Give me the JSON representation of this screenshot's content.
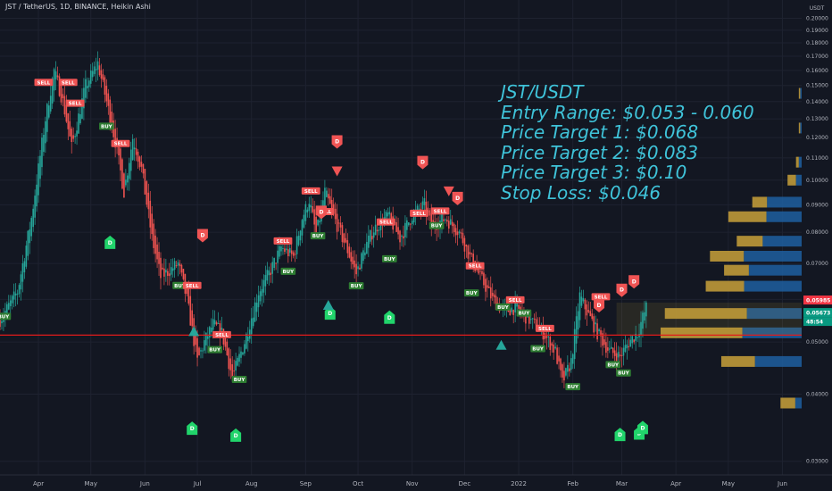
{
  "header": {
    "title": "JST / TetherUS, 1D, BINANCE, Heikin Ashi",
    "currency": "USDT"
  },
  "note": {
    "lines": [
      "JST/USDT",
      "Entry Range: $0.053 - 0.060",
      "Price Target 1: $0.068",
      "Price Target 2: $0.083",
      "Price Target 3: $0.10",
      "Stop Loss: $0.046"
    ]
  },
  "price_tags": [
    {
      "text": "0.05985",
      "value": 0.05985,
      "color": "#f23645"
    },
    {
      "text": "0.05673",
      "value": 0.05673,
      "color": "#089981"
    },
    {
      "text": "48:54",
      "value": 0.0551,
      "color": "#089981"
    }
  ],
  "colors": {
    "background": "#131722",
    "up": "#26a69a",
    "down": "#ef5350",
    "note_text": "#3fc3d9",
    "support_line": "#e21b1b",
    "profile_blue": "#1f5fa0",
    "profile_gold": "#c9a13a"
  },
  "chart_data": {
    "type": "candlestick",
    "title": "JST / TetherUS, 1D, BINANCE, Heikin Ashi",
    "y_scale": "log",
    "ylim": [
      0.0283,
      0.205
    ],
    "y_ticks": [
      0.03,
      0.04,
      0.05,
      0.06,
      0.07,
      0.08,
      0.09,
      0.1,
      0.11,
      0.12,
      0.13,
      0.14,
      0.15,
      0.16,
      0.17,
      0.18,
      0.19,
      0.2
    ],
    "y_tick_labels": [
      "0.03000",
      "0.04000",
      "0.05000",
      "0.06000",
      "0.07000",
      "0.08000",
      "0.09000",
      "0.10000",
      "0.11000",
      "0.12000",
      "0.13000",
      "0.14000",
      "0.15000",
      "0.16000",
      "0.17000",
      "0.18000",
      "0.19000",
      "0.20000"
    ],
    "x_labels": [
      "Apr",
      "May",
      "Jun",
      "Jul",
      "Aug",
      "Sep",
      "Oct",
      "Nov",
      "Dec",
      "2022",
      "Feb",
      "Mar",
      "Apr",
      "May",
      "Jun"
    ],
    "x_dates": [
      "2021-04-01",
      "2021-05-01",
      "2021-06-01",
      "2021-07-01",
      "2021-08-01",
      "2021-09-01",
      "2021-10-01",
      "2021-11-01",
      "2021-12-01",
      "2022-01-01",
      "2022-02-01",
      "2022-03-01",
      "2022-04-01",
      "2022-05-01",
      "2022-06-01"
    ],
    "x_range": [
      "2021-03-10",
      "2022-06-12"
    ],
    "support_line": 0.0515,
    "price_path": [
      [
        "2021-03-10",
        0.055
      ],
      [
        "2021-03-20",
        0.062
      ],
      [
        "2021-03-28",
        0.085
      ],
      [
        "2021-04-05",
        0.13
      ],
      [
        "2021-04-10",
        0.16
      ],
      [
        "2021-04-15",
        0.14
      ],
      [
        "2021-04-20",
        0.115
      ],
      [
        "2021-04-28",
        0.15
      ],
      [
        "2021-05-05",
        0.165
      ],
      [
        "2021-05-10",
        0.14
      ],
      [
        "2021-05-15",
        0.118
      ],
      [
        "2021-05-20",
        0.095
      ],
      [
        "2021-05-25",
        0.12
      ],
      [
        "2021-05-30",
        0.105
      ],
      [
        "2021-06-05",
        0.078
      ],
      [
        "2021-06-10",
        0.066
      ],
      [
        "2021-06-20",
        0.07
      ],
      [
        "2021-06-25",
        0.06
      ],
      [
        "2021-07-01",
        0.046
      ],
      [
        "2021-07-05",
        0.05
      ],
      [
        "2021-07-10",
        0.054
      ],
      [
        "2021-07-15",
        0.052
      ],
      [
        "2021-07-21",
        0.043
      ],
      [
        "2021-07-28",
        0.05
      ],
      [
        "2021-08-05",
        0.062
      ],
      [
        "2021-08-12",
        0.068
      ],
      [
        "2021-08-18",
        0.075
      ],
      [
        "2021-08-25",
        0.072
      ],
      [
        "2021-08-30",
        0.085
      ],
      [
        "2021-09-03",
        0.092
      ],
      [
        "2021-09-07",
        0.079
      ],
      [
        "2021-09-12",
        0.095
      ],
      [
        "2021-09-18",
        0.084
      ],
      [
        "2021-09-25",
        0.074
      ],
      [
        "2021-09-30",
        0.067
      ],
      [
        "2021-10-05",
        0.075
      ],
      [
        "2021-10-10",
        0.081
      ],
      [
        "2021-10-18",
        0.086
      ],
      [
        "2021-10-25",
        0.078
      ],
      [
        "2021-11-01",
        0.086
      ],
      [
        "2021-11-08",
        0.09
      ],
      [
        "2021-11-12",
        0.082
      ],
      [
        "2021-11-20",
        0.085
      ],
      [
        "2021-11-28",
        0.08
      ],
      [
        "2021-12-04",
        0.072
      ],
      [
        "2021-12-10",
        0.066
      ],
      [
        "2021-12-17",
        0.06
      ],
      [
        "2021-12-24",
        0.057
      ],
      [
        "2021-12-30",
        0.058
      ],
      [
        "2022-01-07",
        0.055
      ],
      [
        "2022-01-15",
        0.052
      ],
      [
        "2022-01-22",
        0.048
      ],
      [
        "2022-01-26",
        0.042
      ],
      [
        "2022-01-31",
        0.046
      ],
      [
        "2022-02-05",
        0.061
      ],
      [
        "2022-02-09",
        0.057
      ],
      [
        "2022-02-15",
        0.052
      ],
      [
        "2022-02-22",
        0.048
      ],
      [
        "2022-02-28",
        0.047
      ],
      [
        "2022-03-05",
        0.05
      ],
      [
        "2022-03-10",
        0.052
      ],
      [
        "2022-03-15",
        0.058
      ]
    ],
    "signals": [
      {
        "date": "2021-03-12",
        "price": 0.0558,
        "label": "BUY",
        "kind": "buy"
      },
      {
        "date": "2021-04-04",
        "price": 0.152,
        "label": "SELL",
        "kind": "sell"
      },
      {
        "date": "2021-04-18",
        "price": 0.152,
        "label": "SELL",
        "kind": "sell"
      },
      {
        "date": "2021-04-22",
        "price": 0.139,
        "label": "SELL",
        "kind": "sell"
      },
      {
        "date": "2021-05-10",
        "price": 0.126,
        "label": "BUY",
        "kind": "buy"
      },
      {
        "date": "2021-05-18",
        "price": 0.117,
        "label": "SELL",
        "kind": "sell"
      },
      {
        "date": "2021-06-21",
        "price": 0.0637,
        "label": "BUY",
        "kind": "buy"
      },
      {
        "date": "2021-06-28",
        "price": 0.0637,
        "label": "SELL",
        "kind": "sell"
      },
      {
        "date": "2021-07-15",
        "price": 0.0516,
        "label": "SELL",
        "kind": "sell"
      },
      {
        "date": "2021-07-11",
        "price": 0.0484,
        "label": "BUY",
        "kind": "buy"
      },
      {
        "date": "2021-07-25",
        "price": 0.0426,
        "label": "BUY",
        "kind": "buy"
      },
      {
        "date": "2021-08-19",
        "price": 0.0771,
        "label": "SELL",
        "kind": "sell"
      },
      {
        "date": "2021-08-22",
        "price": 0.0677,
        "label": "BUY",
        "kind": "buy"
      },
      {
        "date": "2021-09-04",
        "price": 0.0955,
        "label": "SELL",
        "kind": "sell"
      },
      {
        "date": "2021-09-12",
        "price": 0.0874,
        "label": "SELL",
        "kind": "sell"
      },
      {
        "date": "2021-09-08",
        "price": 0.0788,
        "label": "BUY",
        "kind": "buy"
      },
      {
        "date": "2021-09-30",
        "price": 0.0636,
        "label": "BUY",
        "kind": "buy"
      },
      {
        "date": "2021-10-17",
        "price": 0.0836,
        "label": "SELL",
        "kind": "sell"
      },
      {
        "date": "2021-10-19",
        "price": 0.0714,
        "label": "BUY",
        "kind": "buy"
      },
      {
        "date": "2021-11-05",
        "price": 0.0868,
        "label": "SELL",
        "kind": "sell"
      },
      {
        "date": "2021-11-17",
        "price": 0.0876,
        "label": "SELL",
        "kind": "sell"
      },
      {
        "date": "2021-11-15",
        "price": 0.0823,
        "label": "BUY",
        "kind": "buy"
      },
      {
        "date": "2021-12-07",
        "price": 0.0693,
        "label": "SELL",
        "kind": "sell"
      },
      {
        "date": "2021-12-05",
        "price": 0.0617,
        "label": "BUY",
        "kind": "buy"
      },
      {
        "date": "2021-12-23",
        "price": 0.0581,
        "label": "BUY",
        "kind": "buy"
      },
      {
        "date": "2021-12-30",
        "price": 0.0599,
        "label": "SELL",
        "kind": "sell"
      },
      {
        "date": "2022-01-04",
        "price": 0.0566,
        "label": "BUY",
        "kind": "buy"
      },
      {
        "date": "2022-01-16",
        "price": 0.053,
        "label": "SELL",
        "kind": "sell"
      },
      {
        "date": "2022-01-12",
        "price": 0.0486,
        "label": "BUY",
        "kind": "buy"
      },
      {
        "date": "2022-02-01",
        "price": 0.0413,
        "label": "BUY",
        "kind": "buy"
      },
      {
        "date": "2022-02-17",
        "price": 0.0607,
        "label": "SELL",
        "kind": "sell"
      },
      {
        "date": "2022-02-24",
        "price": 0.0454,
        "label": "BUY",
        "kind": "buy"
      },
      {
        "date": "2022-03-02",
        "price": 0.0438,
        "label": "BUY",
        "kind": "buy"
      }
    ],
    "markers": [
      {
        "date": "2021-05-12",
        "price": 0.0765,
        "kind": "circle-up",
        "label": "D"
      },
      {
        "date": "2021-06-28",
        "price": 0.0345,
        "kind": "circle-up",
        "label": "D"
      },
      {
        "date": "2021-07-23",
        "price": 0.0335,
        "kind": "circle-up",
        "label": "D"
      },
      {
        "date": "2021-07-04",
        "price": 0.079,
        "kind": "circle-down",
        "label": "D"
      },
      {
        "date": "2021-09-10",
        "price": 0.0873,
        "kind": "circle-down",
        "label": "D"
      },
      {
        "date": "2021-09-19",
        "price": 0.118,
        "kind": "circle-down",
        "label": "D"
      },
      {
        "date": "2021-11-07",
        "price": 0.108,
        "kind": "circle-down",
        "label": "D"
      },
      {
        "date": "2021-11-27",
        "price": 0.0926,
        "kind": "circle-down",
        "label": "D"
      },
      {
        "date": "2021-09-15",
        "price": 0.0565,
        "kind": "circle-up",
        "label": "D"
      },
      {
        "date": "2021-10-19",
        "price": 0.0555,
        "kind": "circle-up",
        "label": "D"
      },
      {
        "date": "2022-02-16",
        "price": 0.0585,
        "kind": "circle-down",
        "label": "D"
      },
      {
        "date": "2022-03-01",
        "price": 0.0625,
        "kind": "circle-down",
        "label": "D"
      },
      {
        "date": "2022-03-08",
        "price": 0.0648,
        "kind": "circle-down",
        "label": "D"
      },
      {
        "date": "2022-02-28",
        "price": 0.0336,
        "kind": "circle-up",
        "label": "D"
      },
      {
        "date": "2022-03-11",
        "price": 0.0338,
        "kind": "circle-up",
        "label": "D"
      },
      {
        "date": "2022-03-13",
        "price": 0.0346,
        "kind": "circle-up",
        "label": "D"
      },
      {
        "date": "2021-06-29",
        "price": 0.0523,
        "kind": "triangle-up"
      },
      {
        "date": "2021-12-22",
        "price": 0.0493,
        "kind": "triangle-up"
      },
      {
        "date": "2021-09-19",
        "price": 0.104,
        "kind": "triangle-down"
      },
      {
        "date": "2021-11-22",
        "price": 0.0955,
        "kind": "triangle-down"
      },
      {
        "date": "2021-09-14",
        "price": 0.0585,
        "kind": "triangle-up"
      }
    ],
    "volume_profile": [
      {
        "price": 0.091,
        "total": 0.35,
        "buy_frac": 0.7
      },
      {
        "price": 0.0855,
        "total": 0.52,
        "buy_frac": 0.48
      },
      {
        "price": 0.077,
        "total": 0.46,
        "buy_frac": 0.6
      },
      {
        "price": 0.0722,
        "total": 0.65,
        "buy_frac": 0.63
      },
      {
        "price": 0.068,
        "total": 0.55,
        "buy_frac": 0.68
      },
      {
        "price": 0.0635,
        "total": 0.68,
        "buy_frac": 0.6
      },
      {
        "price": 0.0565,
        "total": 0.97,
        "buy_frac": 0.4
      },
      {
        "price": 0.052,
        "total": 1.0,
        "buy_frac": 0.42
      },
      {
        "price": 0.046,
        "total": 0.57,
        "buy_frac": 0.58
      },
      {
        "price": 0.0385,
        "total": 0.15,
        "buy_frac": 0.3
      },
      {
        "price": 0.1,
        "total": 0.1,
        "buy_frac": 0.4
      },
      {
        "price": 0.108,
        "total": 0.04,
        "buy_frac": 0.5
      },
      {
        "price": 0.125,
        "total": 0.02,
        "buy_frac": 0.5
      },
      {
        "price": 0.145,
        "total": 0.02,
        "buy_frac": 0.5
      }
    ]
  }
}
